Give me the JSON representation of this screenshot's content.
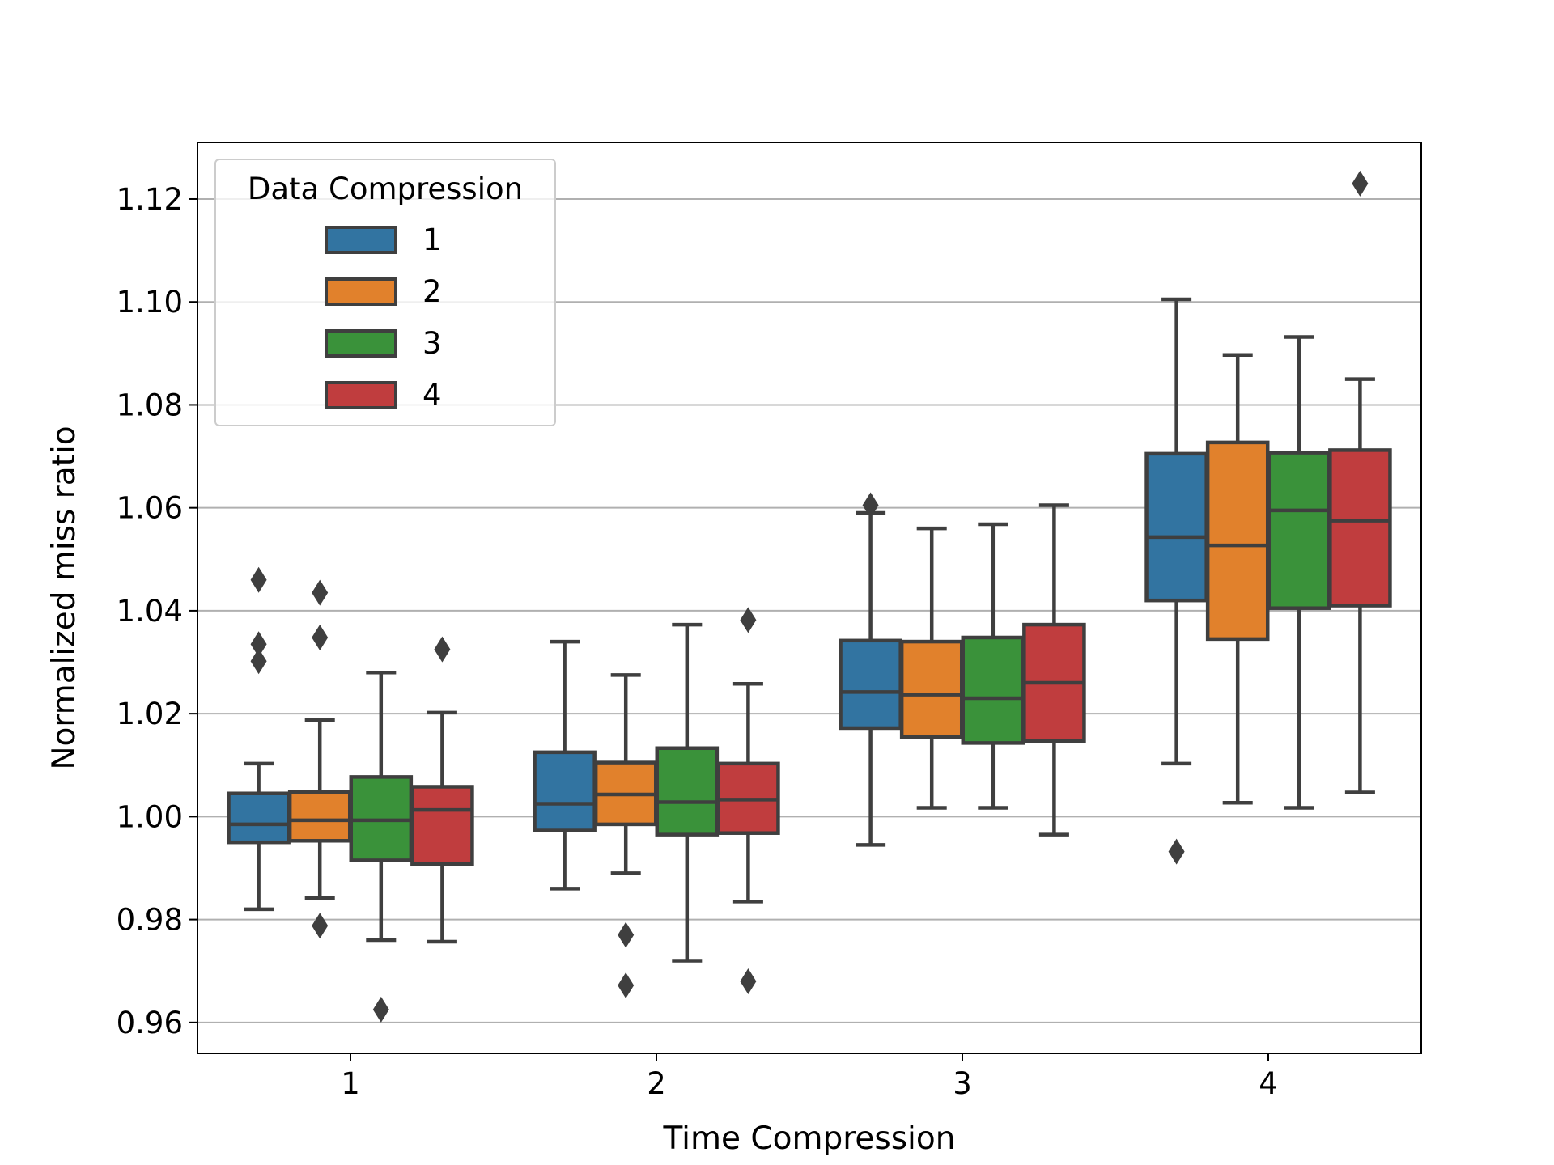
{
  "chart_data": {
    "type": "boxplot",
    "title": "",
    "xlabel": "Time Compression",
    "ylabel": "Normalized miss ratio",
    "categories": [
      "1",
      "2",
      "3",
      "4"
    ],
    "ylim": [
      0.954,
      1.131
    ],
    "yticks": [
      0.96,
      0.98,
      1.0,
      1.02,
      1.04,
      1.06,
      1.08,
      1.1,
      1.12
    ],
    "ytick_labels": [
      "0.96",
      "0.98",
      "1.00",
      "1.02",
      "1.04",
      "1.06",
      "1.08",
      "1.10",
      "1.12"
    ],
    "grid": "y",
    "legend": {
      "title": "Data Compression",
      "location": "top-left",
      "entries": [
        "1",
        "2",
        "3",
        "4"
      ]
    },
    "series": [
      {
        "name": "1",
        "color": "#3274a1",
        "boxes": [
          {
            "whisker_low": 0.982,
            "q1": 0.995,
            "median": 0.9985,
            "q3": 1.0045,
            "whisker_high": 1.0103,
            "outliers": [
              1.046,
              1.0335,
              1.0302
            ]
          },
          {
            "whisker_low": 0.986,
            "q1": 0.9973,
            "median": 1.0025,
            "q3": 1.0125,
            "whisker_high": 1.034,
            "outliers": []
          },
          {
            "whisker_low": 0.9945,
            "q1": 1.0172,
            "median": 1.0242,
            "q3": 1.0342,
            "whisker_high": 1.059,
            "outliers": [
              1.0605
            ]
          },
          {
            "whisker_low": 1.0103,
            "q1": 1.042,
            "median": 1.0543,
            "q3": 1.0705,
            "whisker_high": 1.1005,
            "outliers": [
              0.9932
            ]
          }
        ]
      },
      {
        "name": "2",
        "color": "#e1812c",
        "boxes": [
          {
            "whisker_low": 0.9842,
            "q1": 0.9953,
            "median": 0.9993,
            "q3": 1.0048,
            "whisker_high": 1.0188,
            "outliers": [
              1.0435,
              1.0348,
              0.9788
            ]
          },
          {
            "whisker_low": 0.989,
            "q1": 0.9985,
            "median": 1.0043,
            "q3": 1.0105,
            "whisker_high": 1.0275,
            "outliers": [
              0.977,
              0.9672
            ]
          },
          {
            "whisker_low": 1.0017,
            "q1": 1.0155,
            "median": 1.0237,
            "q3": 1.034,
            "whisker_high": 1.056,
            "outliers": []
          },
          {
            "whisker_low": 1.0027,
            "q1": 1.0345,
            "median": 1.0527,
            "q3": 1.0727,
            "whisker_high": 1.0897,
            "outliers": []
          }
        ]
      },
      {
        "name": "3",
        "color": "#3a923a",
        "boxes": [
          {
            "whisker_low": 0.976,
            "q1": 0.9915,
            "median": 0.9993,
            "q3": 1.0077,
            "whisker_high": 1.028,
            "outliers": [
              0.9625
            ]
          },
          {
            "whisker_low": 0.972,
            "q1": 0.9965,
            "median": 1.0028,
            "q3": 1.0133,
            "whisker_high": 1.0373,
            "outliers": []
          },
          {
            "whisker_low": 1.0017,
            "q1": 1.0143,
            "median": 1.023,
            "q3": 1.0348,
            "whisker_high": 1.0568,
            "outliers": []
          },
          {
            "whisker_low": 1.0017,
            "q1": 1.0405,
            "median": 1.0595,
            "q3": 1.0707,
            "whisker_high": 1.0932,
            "outliers": []
          }
        ]
      },
      {
        "name": "4",
        "color": "#c03d3e",
        "boxes": [
          {
            "whisker_low": 0.9757,
            "q1": 0.9908,
            "median": 1.0013,
            "q3": 1.0058,
            "whisker_high": 1.0202,
            "outliers": [
              1.0325
            ]
          },
          {
            "whisker_low": 0.9835,
            "q1": 0.9968,
            "median": 1.0033,
            "q3": 1.0103,
            "whisker_high": 1.0258,
            "outliers": [
              1.0382,
              0.968
            ]
          },
          {
            "whisker_low": 0.9965,
            "q1": 1.0147,
            "median": 1.026,
            "q3": 1.0373,
            "whisker_high": 1.0605,
            "outliers": []
          },
          {
            "whisker_low": 1.0047,
            "q1": 1.041,
            "median": 1.0575,
            "q3": 1.0712,
            "whisker_high": 1.085,
            "outliers": [
              1.123
            ]
          }
        ]
      }
    ]
  }
}
